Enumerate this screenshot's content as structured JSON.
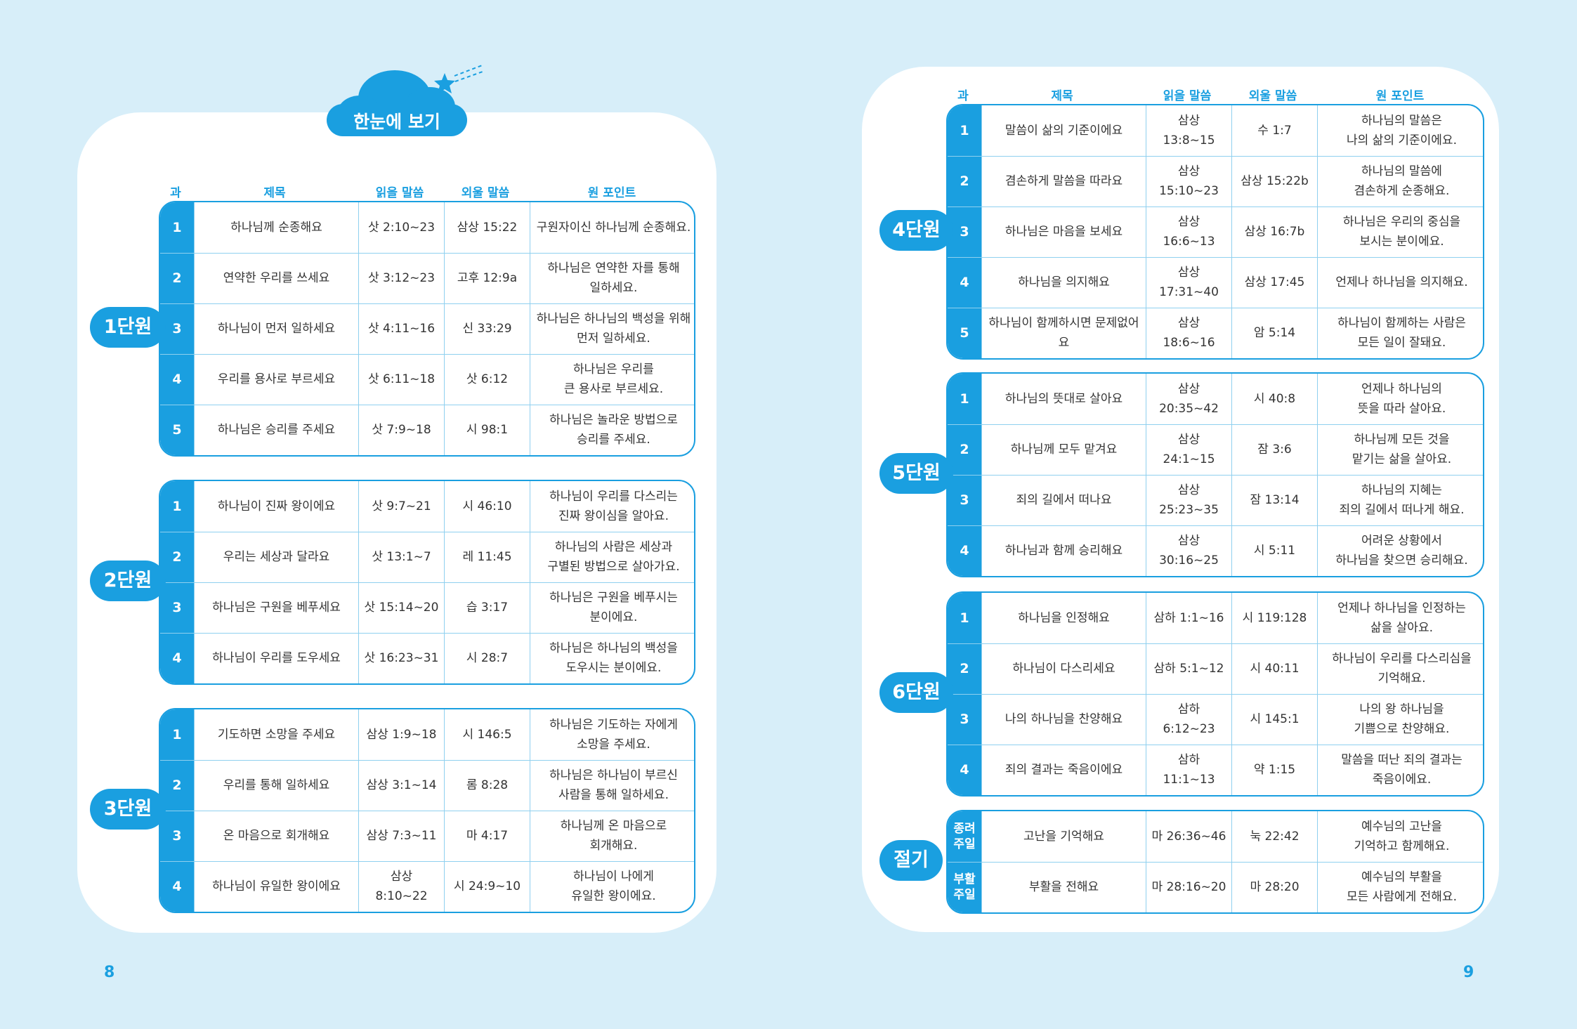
{
  "header": {
    "title": "한눈에 보기"
  },
  "page_numbers": {
    "left": "8",
    "right": "9"
  },
  "columns": [
    "과",
    "제목",
    "읽을 말씀",
    "외울 말씀",
    "원 포인트"
  ],
  "units": [
    {
      "label": "1단원",
      "lessons": [
        {
          "num": "1",
          "title": "하나님께 순종해요",
          "reading": "삿 2:10~23",
          "memory": "삼상 15:22",
          "point": [
            "구원자이신 하나님께 순종해요."
          ]
        },
        {
          "num": "2",
          "title": "연약한 우리를 쓰세요",
          "reading": "삿 3:12~23",
          "memory": "고후 12:9a",
          "point": [
            "하나님은 연약한 자를 통해",
            "일하세요."
          ]
        },
        {
          "num": "3",
          "title": "하나님이 먼저 일하세요",
          "reading": "삿 4:11~16",
          "memory": "신 33:29",
          "point": [
            "하나님은 하나님의 백성을 위해",
            "먼저 일하세요."
          ]
        },
        {
          "num": "4",
          "title": "우리를 용사로 부르세요",
          "reading": "삿 6:11~18",
          "memory": "삿 6:12",
          "point": [
            "하나님은 우리를",
            "큰 용사로 부르세요."
          ]
        },
        {
          "num": "5",
          "title": "하나님은 승리를 주세요",
          "reading": "삿 7:9~18",
          "memory": "시 98:1",
          "point": [
            "하나님은 놀라운 방법으로",
            "승리를 주세요."
          ]
        }
      ]
    },
    {
      "label": "2단원",
      "lessons": [
        {
          "num": "1",
          "title": "하나님이 진짜 왕이에요",
          "reading": "삿 9:7~21",
          "memory": "시 46:10",
          "point": [
            "하나님이 우리를 다스리는",
            "진짜 왕이심을 알아요."
          ]
        },
        {
          "num": "2",
          "title": "우리는 세상과 달라요",
          "reading": "삿 13:1~7",
          "memory": "레 11:45",
          "point": [
            "하나님의 사람은 세상과",
            "구별된 방법으로 살아가요."
          ]
        },
        {
          "num": "3",
          "title": "하나님은 구원을 베푸세요",
          "reading": "삿 15:14~20",
          "memory": "습 3:17",
          "point": [
            "하나님은 구원을 베푸시는",
            "분이에요."
          ]
        },
        {
          "num": "4",
          "title": "하나님이 우리를 도우세요",
          "reading": "삿 16:23~31",
          "memory": "시 28:7",
          "point": [
            "하나님은 하나님의 백성을",
            "도우시는 분이에요."
          ]
        }
      ]
    },
    {
      "label": "3단원",
      "lessons": [
        {
          "num": "1",
          "title": "기도하면 소망을 주세요",
          "reading": "삼상 1:9~18",
          "memory": "시 146:5",
          "point": [
            "하나님은 기도하는 자에게",
            "소망을 주세요."
          ]
        },
        {
          "num": "2",
          "title": "우리를 통해 일하세요",
          "reading": "삼상 3:1~14",
          "memory": "롬 8:28",
          "point": [
            "하나님은 하나님이 부르신",
            "사람을 통해 일하세요."
          ]
        },
        {
          "num": "3",
          "title": "온 마음으로 회개해요",
          "reading": "삼상 7:3~11",
          "memory": "마 4:17",
          "point": [
            "하나님께 온 마음으로",
            "회개해요."
          ]
        },
        {
          "num": "4",
          "title": "하나님이 유일한 왕이에요",
          "reading": "삼상 8:10~22",
          "memory": "시 24:9~10",
          "point": [
            "하나님이 나에게",
            "유일한 왕이에요."
          ]
        }
      ]
    },
    {
      "label": "4단원",
      "lessons": [
        {
          "num": "1",
          "title": "말씀이 삶의 기준이에요",
          "reading": "삼상 13:8~15",
          "memory": "수 1:7",
          "point": [
            "하나님의 말씀은",
            "나의 삶의 기준이에요."
          ]
        },
        {
          "num": "2",
          "title": "겸손하게 말씀을 따라요",
          "reading": "삼상 15:10~23",
          "memory": "삼상 15:22b",
          "point": [
            "하나님의 말씀에",
            "겸손하게 순종해요."
          ]
        },
        {
          "num": "3",
          "title": "하나님은 마음을 보세요",
          "reading": "삼상 16:6~13",
          "memory": "삼상 16:7b",
          "point": [
            "하나님은 우리의 중심을",
            "보시는 분이에요."
          ]
        },
        {
          "num": "4",
          "title": "하나님을 의지해요",
          "reading": "삼상 17:31~40",
          "memory": "삼상 17:45",
          "point": [
            "언제나 하나님을 의지해요."
          ]
        },
        {
          "num": "5",
          "title": "하나님이 함께하시면 문제없어요",
          "reading": "삼상 18:6~16",
          "memory": "암 5:14",
          "point": [
            "하나님이 함께하는 사람은",
            "모든 일이 잘돼요."
          ]
        }
      ]
    },
    {
      "label": "5단원",
      "lessons": [
        {
          "num": "1",
          "title": "하나님의 뜻대로 살아요",
          "reading": "삼상 20:35~42",
          "memory": "시 40:8",
          "point": [
            "언제나 하나님의",
            "뜻을 따라 살아요."
          ]
        },
        {
          "num": "2",
          "title": "하나님께 모두 맡겨요",
          "reading": "삼상 24:1~15",
          "memory": "잠 3:6",
          "point": [
            "하나님께 모든 것을",
            "맡기는 삶을 살아요."
          ]
        },
        {
          "num": "3",
          "title": "죄의 길에서 떠나요",
          "reading": "삼상 25:23~35",
          "memory": "잠 13:14",
          "point": [
            "하나님의 지혜는",
            "죄의 길에서 떠나게 해요."
          ]
        },
        {
          "num": "4",
          "title": "하나님과 함께 승리해요",
          "reading": "삼상 30:16~25",
          "memory": "시 5:11",
          "point": [
            "어려운 상황에서",
            "하나님을 찾으면 승리해요."
          ]
        }
      ]
    },
    {
      "label": "6단원",
      "lessons": [
        {
          "num": "1",
          "title": "하나님을 인정해요",
          "reading": "삼하 1:1~16",
          "memory": "시 119:128",
          "point": [
            "언제나 하나님을 인정하는",
            "삶을 살아요."
          ]
        },
        {
          "num": "2",
          "title": "하나님이 다스리세요",
          "reading": "삼하 5:1~12",
          "memory": "시 40:11",
          "point": [
            "하나님이 우리를 다스리심을",
            "기억해요."
          ]
        },
        {
          "num": "3",
          "title": "나의 하나님을 찬양해요",
          "reading": "삼하 6:12~23",
          "memory": "시 145:1",
          "point": [
            "나의 왕 하나님을",
            "기쁨으로 찬양해요."
          ]
        },
        {
          "num": "4",
          "title": "죄의 결과는 죽음이에요",
          "reading": "삼하 11:1~13",
          "memory": "약 1:15",
          "point": [
            "말씀을 떠난 죄의 결과는",
            "죽음이에요."
          ]
        }
      ]
    },
    {
      "label": "절기",
      "lessons": [
        {
          "num": "종려 주일",
          "title": "고난을 기억해요",
          "reading": "마 26:36~46",
          "memory": "눅 22:42",
          "point": [
            "예수님의 고난을",
            "기억하고 함께해요."
          ]
        },
        {
          "num": "부활 주일",
          "title": "부활을 전해요",
          "reading": "마 28:16~20",
          "memory": "마 28:20",
          "point": [
            "예수님의 부활을",
            "모든 사람에게 전해요."
          ]
        }
      ]
    }
  ],
  "colors": {
    "accent": "#1a9fe0",
    "background": "#d7eef9",
    "grid": "#8fd0ef"
  }
}
